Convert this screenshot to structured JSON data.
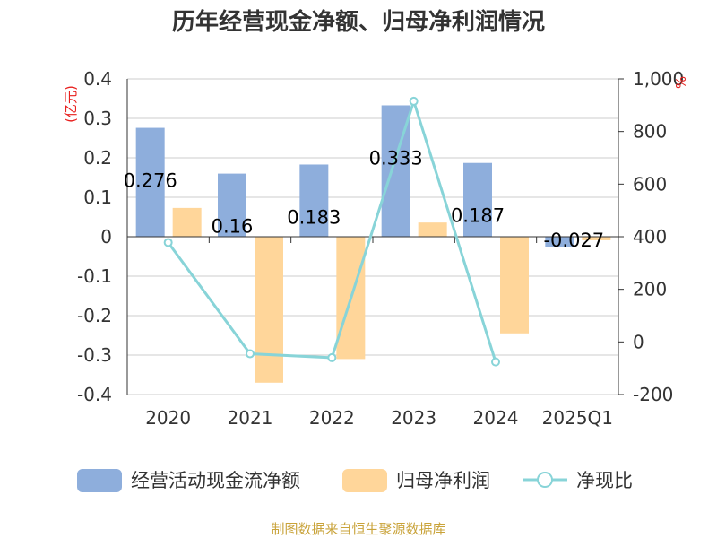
{
  "chart_data": {
    "type": "bar",
    "title": "历年经营现金净额、归母净利润情况",
    "categories": [
      "2020",
      "2021",
      "2022",
      "2023",
      "2024",
      "2025Q1"
    ],
    "series": [
      {
        "name": "经营活动现金流净额",
        "axis": "left",
        "type": "bar",
        "values": [
          0.276,
          0.16,
          0.183,
          0.333,
          0.187,
          -0.027
        ],
        "labels": [
          "0.276",
          "0.16",
          "0.183",
          "0.333",
          "0.187",
          "-0.027"
        ]
      },
      {
        "name": "归母净利润",
        "axis": "left",
        "type": "bar",
        "values": [
          0.073,
          -0.37,
          -0.31,
          0.036,
          -0.245,
          -0.009
        ]
      },
      {
        "name": "净现比",
        "axis": "right",
        "type": "line",
        "values": [
          378,
          -45,
          -60,
          915,
          -76,
          null
        ]
      }
    ],
    "left_axis": {
      "unit": "(亿元)",
      "ylim": [
        -0.4,
        0.4
      ],
      "ticks": [
        "0.4",
        "0.3",
        "0.2",
        "0.1",
        "0",
        "-0.1",
        "-0.2",
        "-0.3",
        "-0.4"
      ]
    },
    "right_axis": {
      "unit": "%",
      "ylim": [
        -200,
        1000
      ],
      "ticks": [
        "1,000",
        "800",
        "600",
        "400",
        "200",
        "0",
        "-200"
      ]
    },
    "legend_position": "bottom",
    "colors": {
      "cash": "#8eaedc",
      "profit": "#ffd69a",
      "ratio": "#88d4d8",
      "unit": "#e8201e",
      "source": "#c9a33a",
      "grid": "#cccccc",
      "axis": "#333333"
    }
  },
  "source": "制图数据来自恒生聚源数据库"
}
